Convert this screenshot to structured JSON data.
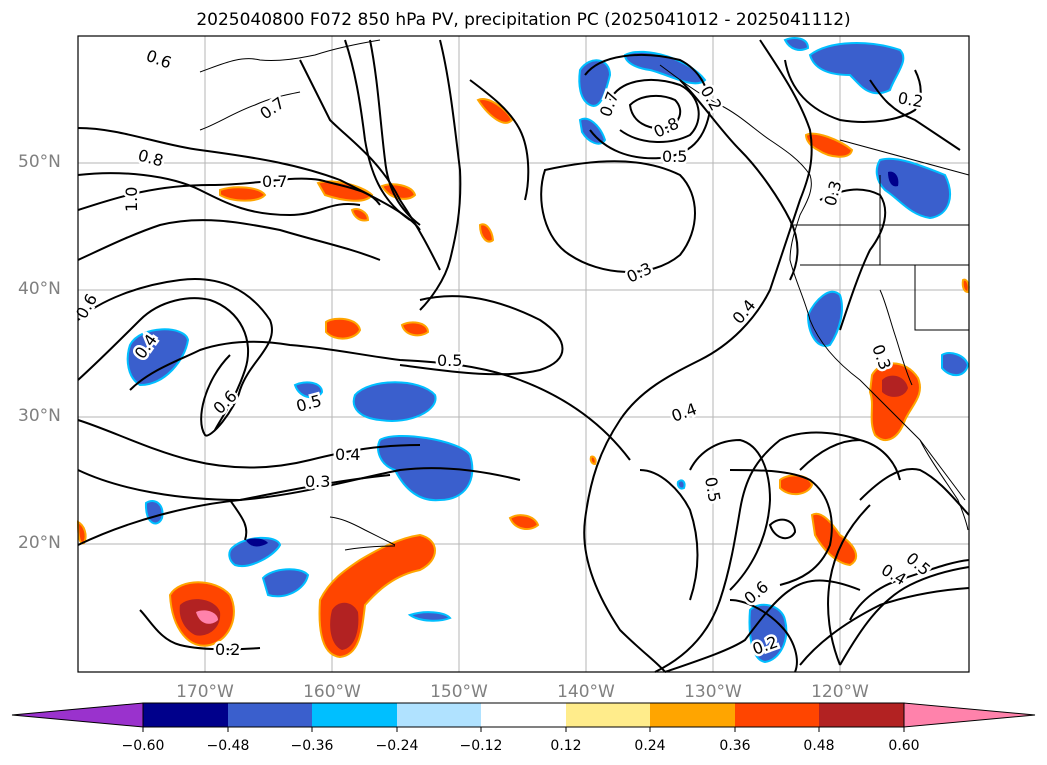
{
  "title": "2025040800 F072 850 hPa PV, precipitation PC (2025041012 - 2025041112)",
  "lat_labels": [
    "50°N",
    "40°N",
    "30°N",
    "20°N"
  ],
  "lon_labels": [
    "170°W",
    "160°W",
    "150°W",
    "140°W",
    "130°W",
    "120°W"
  ],
  "contour_labels": [
    "0.6",
    "0.7",
    "0.8",
    "1.0",
    "0.7",
    "0.6",
    "0.4",
    "0.6",
    "0.5",
    "0.5",
    "0.4",
    "0.3",
    "0.2",
    "0.7",
    "0.8",
    "0.5",
    "0.3",
    "0.4",
    "0.4",
    "0.5",
    "0.3",
    "0.2",
    "0.3",
    "0.2",
    "0.6",
    "0.2",
    "0.4",
    "0.5"
  ],
  "colorbar": {
    "ticks": [
      "−0.60",
      "−0.48",
      "−0.36",
      "−0.24",
      "−0.12",
      "0.12",
      "0.24",
      "0.36",
      "0.48",
      "0.60"
    ],
    "colors": [
      "#9a32cd",
      "#00008b",
      "#3a5fcd",
      "#00bfff",
      "#b0e2ff",
      "#ffffff",
      "#ffec8b",
      "#ffa500",
      "#ff4500",
      "#b22222",
      "#ff82ab"
    ]
  }
}
